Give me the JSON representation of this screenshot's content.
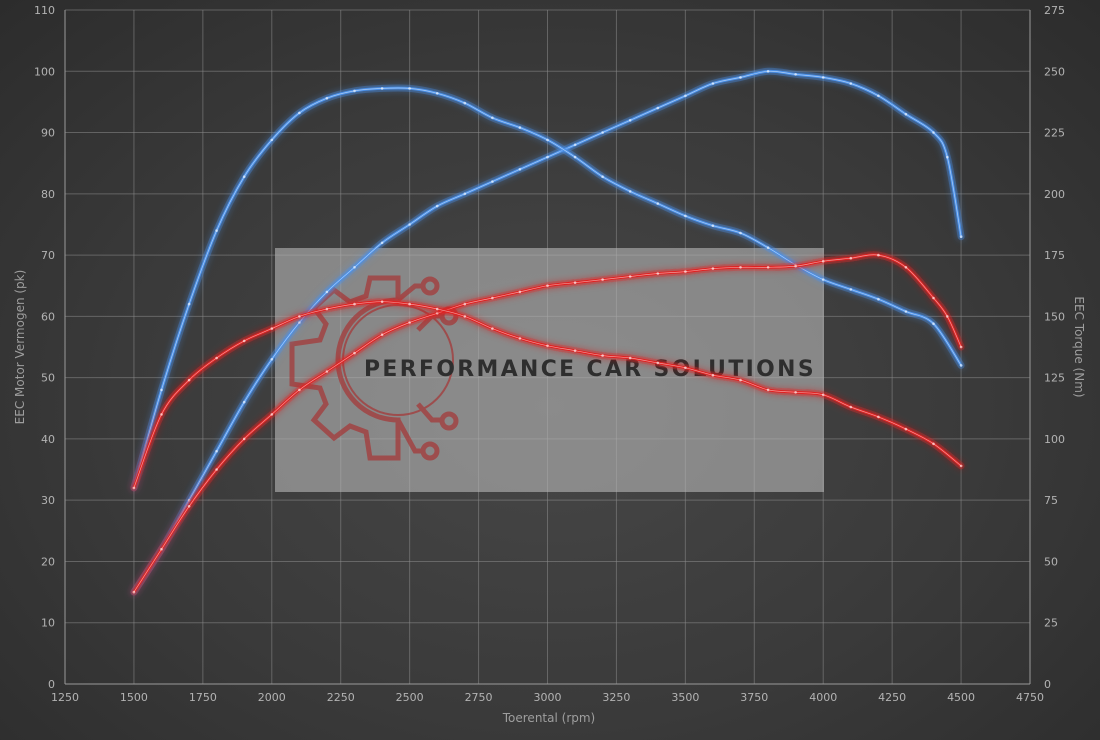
{
  "colors": {
    "stock": "#4a90e8",
    "tuned": "#e02222",
    "watermark_box": "#b5b5b5",
    "logo": "#a43a3a",
    "watermark_text": "#2e2e2e"
  },
  "watermark": {
    "text": "PERFORMANCE CAR SOLUTIONS"
  },
  "chart_data": {
    "type": "line",
    "xlabel": "Toerental (rpm)",
    "ylabel_left": "EEC Motor Vermogen (pk)",
    "ylabel_right": "EEC Torque (Nm)",
    "xlim": [
      1250,
      4750
    ],
    "ylim_left": [
      0,
      110
    ],
    "ylim_right": [
      0,
      275
    ],
    "xticks": [
      1250,
      1500,
      1750,
      2000,
      2250,
      2500,
      2750,
      3000,
      3250,
      3500,
      3750,
      4000,
      4250,
      4500,
      4750
    ],
    "yticks_left": [
      0,
      10,
      20,
      30,
      40,
      50,
      60,
      70,
      80,
      90,
      100,
      110
    ],
    "yticks_right": [
      0,
      25,
      50,
      75,
      100,
      125,
      150,
      175,
      200,
      225,
      250,
      275
    ],
    "grid": true,
    "series": [
      {
        "key": "power_stock",
        "axis": "left",
        "color": "#4a90e8",
        "x": [
          1500,
          1600,
          1700,
          1800,
          1900,
          2000,
          2100,
          2200,
          2300,
          2400,
          2500,
          2600,
          2700,
          2800,
          2900,
          3000,
          3100,
          3200,
          3300,
          3400,
          3500,
          3600,
          3700,
          3800,
          3900,
          4000,
          4100,
          4200,
          4300,
          4400,
          4450,
          4500
        ],
        "y": [
          15,
          22,
          30,
          38,
          46,
          53,
          59,
          64,
          68,
          72,
          75,
          78,
          80,
          82,
          84,
          86,
          88,
          90,
          92,
          94,
          96,
          98,
          99,
          100,
          99.5,
          99,
          98,
          96,
          93,
          90,
          86,
          73
        ]
      },
      {
        "key": "torque_stock",
        "axis": "right",
        "color": "#4a90e8",
        "x": [
          1500,
          1600,
          1700,
          1800,
          1900,
          2000,
          2100,
          2200,
          2300,
          2400,
          2500,
          2600,
          2700,
          2800,
          2900,
          3000,
          3100,
          3200,
          3300,
          3400,
          3500,
          3600,
          3700,
          3800,
          3900,
          4000,
          4100,
          4200,
          4300,
          4400,
          4500
        ],
        "y": [
          80,
          120,
          155,
          185,
          207,
          222,
          233,
          239,
          242,
          243,
          243,
          241,
          237,
          231,
          227,
          222,
          215,
          207,
          201,
          196,
          191,
          187,
          184,
          178,
          171,
          165,
          161,
          157,
          152,
          147,
          130
        ]
      },
      {
        "key": "power_tuned",
        "axis": "left",
        "color": "#e02222",
        "x": [
          1500,
          1600,
          1700,
          1800,
          1900,
          2000,
          2100,
          2200,
          2300,
          2400,
          2500,
          2600,
          2700,
          2800,
          2900,
          3000,
          3100,
          3200,
          3300,
          3400,
          3500,
          3600,
          3700,
          3800,
          3900,
          4000,
          4100,
          4200,
          4300,
          4400,
          4450,
          4500
        ],
        "y": [
          15,
          22,
          29,
          35,
          40,
          44,
          48,
          51,
          54,
          57,
          59,
          60.5,
          62,
          63,
          64,
          65,
          65.5,
          66,
          66.5,
          67,
          67.3,
          67.8,
          68,
          68,
          68.2,
          69,
          69.5,
          70,
          68,
          63,
          60,
          55
        ]
      },
      {
        "key": "torque_tuned",
        "axis": "right",
        "color": "#e02222",
        "x": [
          1500,
          1600,
          1700,
          1800,
          1900,
          2000,
          2100,
          2200,
          2300,
          2400,
          2500,
          2600,
          2700,
          2800,
          2900,
          3000,
          3100,
          3200,
          3300,
          3400,
          3500,
          3600,
          3700,
          3800,
          3900,
          4000,
          4100,
          4200,
          4300,
          4400,
          4500
        ],
        "y": [
          80,
          110,
          124,
          133,
          140,
          145,
          150,
          153,
          155,
          156,
          155,
          153,
          150,
          145,
          141,
          138,
          136,
          134,
          133,
          131,
          129,
          126,
          124,
          120,
          119,
          118,
          113,
          109,
          104,
          98,
          89
        ]
      }
    ]
  }
}
